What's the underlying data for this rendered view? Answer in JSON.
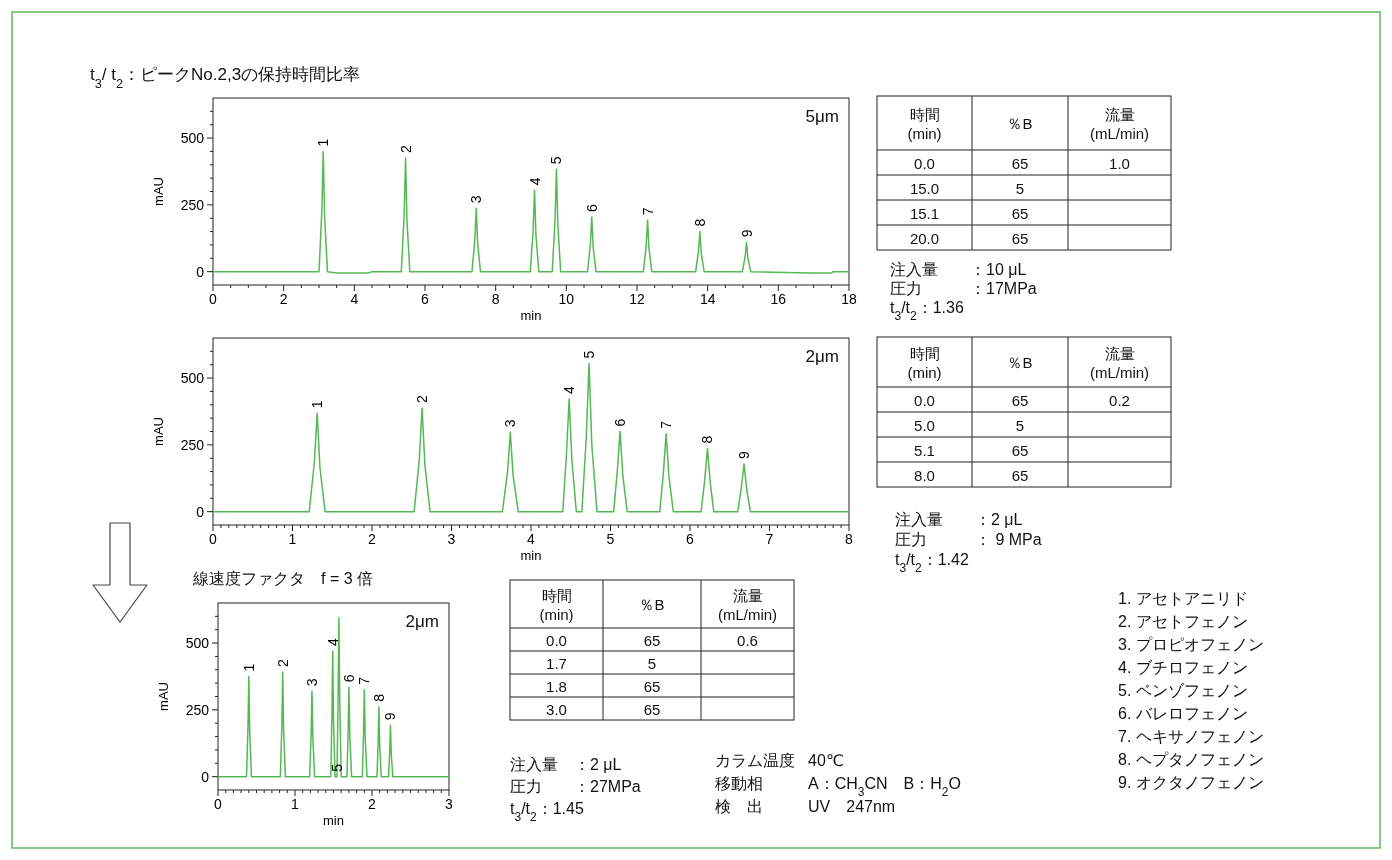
{
  "chart_data": [
    {
      "type": "line",
      "xlabel": "min",
      "ylabel": "mAU",
      "xlim": [
        0,
        18
      ],
      "ylim": [
        -50,
        650
      ],
      "xticks": [
        0,
        {
          "value": 0.5,
          "label": null
        },
        {
          "value": 1,
          "label": null
        },
        {
          "value": 1.5,
          "label": null
        },
        2,
        {
          "value": 2.5,
          "label": null
        },
        {
          "value": 3,
          "label": null
        },
        {
          "value": 3.5,
          "label": null
        },
        4,
        {
          "value": 4.5,
          "label": null
        },
        {
          "value": 5,
          "label": null
        },
        {
          "value": 5.5,
          "label": null
        },
        6,
        {
          "value": 6.5,
          "label": null
        },
        {
          "value": 7,
          "label": null
        },
        {
          "value": 7.5,
          "label": null
        },
        8,
        {
          "value": 8.5,
          "label": null
        },
        {
          "value": 9,
          "label": null
        },
        {
          "value": 9.5,
          "label": null
        },
        10,
        {
          "value": 10.5,
          "label": null
        },
        {
          "value": 11,
          "label": null
        },
        {
          "value": 11.5,
          "label": null
        },
        12,
        {
          "value": 12.5,
          "label": null
        },
        {
          "value": 13,
          "label": null
        },
        {
          "value": 13.5,
          "label": null
        },
        14,
        {
          "value": 14.5,
          "label": null
        },
        {
          "value": 15,
          "label": null
        },
        {
          "value": 15.5,
          "label": null
        },
        16,
        {
          "value": 16.5,
          "label": null
        },
        {
          "value": 17,
          "label": null
        },
        {
          "value": 17.5,
          "label": null
        },
        18
      ],
      "yticks": [
        0,
        {
          "value": 50,
          "label": null
        },
        {
          "value": 100,
          "label": null
        },
        {
          "value": 150,
          "label": null
        },
        {
          "value": 200,
          "label": null
        },
        250,
        {
          "value": 300,
          "label": null
        },
        {
          "value": 350,
          "label": null
        },
        {
          "value": 400,
          "label": null
        },
        {
          "value": 450,
          "label": null
        },
        500,
        {
          "value": 550,
          "label": null
        },
        {
          "value": 600,
          "label": null
        }
      ],
      "series": [
        {
          "color": "#55b855",
          "x": [
            0,
            3.0,
            3.08,
            3.12,
            3.16,
            3.24,
            3.5,
            4.4,
            4.5,
            5.33,
            5.41,
            5.45,
            5.49,
            5.57,
            7.33,
            7.41,
            7.45,
            7.49,
            7.57,
            8.98,
            9.06,
            9.1,
            9.14,
            9.22,
            9.6,
            9.68,
            9.72,
            9.76,
            9.84,
            10.6,
            10.68,
            10.72,
            10.76,
            10.84,
            12.18,
            12.26,
            12.3,
            12.34,
            12.42,
            13.66,
            13.74,
            13.78,
            13.82,
            13.9,
            14.98,
            15.06,
            15.1,
            15.14,
            15.22,
            16.9,
            17.5,
            17.55,
            18
          ],
          "values": [
            0,
            0,
            225,
            450,
            200,
            0,
            -5,
            -5,
            0,
            0,
            212,
            425,
            190,
            0,
            0,
            118,
            237,
            106,
            0,
            0,
            152,
            305,
            137,
            0,
            0,
            191,
            383,
            172,
            0,
            0,
            102,
            205,
            92,
            0,
            0,
            96,
            192,
            86,
            0,
            0,
            75,
            150,
            67,
            0,
            0,
            55,
            110,
            49,
            0,
            -5,
            -5,
            0,
            0
          ]
        }
      ],
      "annotations": [
        "5μm",
        "時間\n(min)",
        "％B",
        "流量\n(mL/min)",
        "0.0",
        "65",
        "1.0",
        "15.0",
        "5",
        "15.1",
        "65",
        "20.0",
        "65",
        "注入量　　：10 μL",
        "圧力　　　：17MPa",
        "t$_{3}$/t$_{2}$：1.36",
        {
          "text": "1",
          "x": 3.12,
          "y": 450
        },
        {
          "text": "2",
          "x": 5.45,
          "y": 425
        },
        {
          "text": "3",
          "x": 7.45,
          "y": 237
        },
        {
          "text": "4",
          "x": 9.1,
          "y": 305
        },
        {
          "text": "5",
          "x": 9.72,
          "y": 383
        },
        {
          "text": "6",
          "x": 10.72,
          "y": 205
        },
        {
          "text": "7",
          "x": 12.3,
          "y": 192
        },
        {
          "text": "8",
          "x": 13.78,
          "y": 150
        },
        {
          "text": "9",
          "x": 15.1,
          "y": 110
        }
      ]
    },
    {
      "type": "line",
      "xlabel": "min",
      "ylabel": "mAU",
      "xlim": [
        0,
        8
      ],
      "ylim": [
        -50,
        650
      ],
      "xticks": [
        0,
        {
          "value": 0.1,
          "label": null
        },
        {
          "value": 0.2,
          "label": null
        },
        {
          "value": 0.3,
          "label": null
        },
        {
          "value": 0.4,
          "label": null
        },
        {
          "value": 0.5,
          "label": null
        },
        {
          "value": 0.6,
          "label": null
        },
        {
          "value": 0.7,
          "label": null
        },
        {
          "value": 0.8,
          "label": null
        },
        {
          "value": 0.9,
          "label": null
        },
        1,
        {
          "value": 1.1,
          "label": null
        },
        {
          "value": 1.2,
          "label": null
        },
        {
          "value": 1.3,
          "label": null
        },
        {
          "value": 1.4,
          "label": null
        },
        {
          "value": 1.5,
          "label": null
        },
        {
          "value": 1.6,
          "label": null
        },
        {
          "value": 1.7,
          "label": null
        },
        {
          "value": 1.8,
          "label": null
        },
        {
          "value": 1.9,
          "label": null
        },
        2,
        {
          "value": 2.1,
          "label": null
        },
        {
          "value": 2.2,
          "label": null
        },
        {
          "value": 2.3,
          "label": null
        },
        {
          "value": 2.4,
          "label": null
        },
        {
          "value": 2.5,
          "label": null
        },
        {
          "value": 2.6,
          "label": null
        },
        {
          "value": 2.7,
          "label": null
        },
        {
          "value": 2.8,
          "label": null
        },
        {
          "value": 2.9,
          "label": null
        },
        3,
        {
          "value": 3.1,
          "label": null
        },
        {
          "value": 3.2,
          "label": null
        },
        {
          "value": 3.3,
          "label": null
        },
        {
          "value": 3.4,
          "label": null
        },
        {
          "value": 3.5,
          "label": null
        },
        {
          "value": 3.6,
          "label": null
        },
        {
          "value": 3.7,
          "label": null
        },
        {
          "value": 3.8,
          "label": null
        },
        {
          "value": 3.9,
          "label": null
        },
        4,
        {
          "value": 4.1,
          "label": null
        },
        {
          "value": 4.2,
          "label": null
        },
        {
          "value": 4.3,
          "label": null
        },
        {
          "value": 4.4,
          "label": null
        },
        {
          "value": 4.5,
          "label": null
        },
        {
          "value": 4.6,
          "label": null
        },
        {
          "value": 4.7,
          "label": null
        },
        {
          "value": 4.8,
          "label": null
        },
        {
          "value": 4.9,
          "label": null
        },
        5,
        {
          "value": 5.1,
          "label": null
        },
        {
          "value": 5.2,
          "label": null
        },
        {
          "value": 5.3,
          "label": null
        },
        {
          "value": 5.4,
          "label": null
        },
        {
          "value": 5.5,
          "label": null
        },
        {
          "value": 5.6,
          "label": null
        },
        {
          "value": 5.7,
          "label": null
        },
        {
          "value": 5.8,
          "label": null
        },
        {
          "value": 5.9,
          "label": null
        },
        6,
        {
          "value": 6.1,
          "label": null
        },
        {
          "value": 6.2,
          "label": null
        },
        {
          "value": 6.3,
          "label": null
        },
        {
          "value": 6.4,
          "label": null
        },
        {
          "value": 6.5,
          "label": null
        },
        {
          "value": 6.6,
          "label": null
        },
        {
          "value": 6.7,
          "label": null
        },
        {
          "value": 6.8,
          "label": null
        },
        {
          "value": 6.9,
          "label": null
        },
        7,
        {
          "value": 7.1,
          "label": null
        },
        {
          "value": 7.2,
          "label": null
        },
        {
          "value": 7.3,
          "label": null
        },
        {
          "value": 7.4,
          "label": null
        },
        {
          "value": 7.5,
          "label": null
        },
        {
          "value": 7.6,
          "label": null
        },
        {
          "value": 7.7,
          "label": null
        },
        {
          "value": 7.8,
          "label": null
        },
        {
          "value": 7.9,
          "label": null
        },
        8
      ],
      "yticks": [
        0,
        {
          "value": 50,
          "label": null
        },
        {
          "value": 100,
          "label": null
        },
        {
          "value": 150,
          "label": null
        },
        {
          "value": 200,
          "label": null
        },
        250,
        {
          "value": 300,
          "label": null
        },
        {
          "value": 350,
          "label": null
        },
        {
          "value": 400,
          "label": null
        },
        {
          "value": 450,
          "label": null
        },
        500,
        {
          "value": 550,
          "label": null
        },
        {
          "value": 600,
          "label": null
        }
      ],
      "series": [
        {
          "color": "#55b855",
          "x": [
            0,
            1.21,
            1.275,
            1.31,
            1.345,
            1.41,
            2.53,
            2.595,
            2.63,
            2.665,
            2.73,
            3.64,
            3.705,
            3.74,
            3.775,
            3.84,
            4.4,
            4.445,
            4.48,
            4.515,
            4.57,
            4.64,
            4.695,
            4.73,
            4.765,
            4.83,
            5.04,
            5.085,
            5.12,
            5.155,
            5.21,
            5.62,
            5.665,
            5.7,
            5.735,
            5.79,
            6.14,
            6.185,
            6.22,
            6.255,
            6.3,
            6.6,
            6.645,
            6.68,
            6.715,
            6.76,
            8
          ],
          "values": [
            0,
            0,
            184,
            368,
            166,
            0,
            0,
            194,
            388,
            175,
            0,
            0,
            148,
            297,
            134,
            0,
            0,
            211,
            422,
            190,
            0,
            0,
            278,
            555,
            250,
            0,
            0,
            150,
            300,
            135,
            0,
            0,
            146,
            292,
            131,
            0,
            0,
            118,
            236,
            106,
            0,
            0,
            89,
            178,
            80,
            0,
            0
          ]
        }
      ],
      "annotations": [
        "2μm",
        "時間\n(min)",
        "％B",
        "流量\n(mL/min)",
        "0.0",
        "65",
        "0.2",
        "5.0",
        "5",
        "5.1",
        "65",
        "8.0",
        "65",
        "注入量　　：2 μL",
        "圧力　　　： 9 MPa",
        "t$_{3}$/t$_{2}$：1.42",
        {
          "text": "1",
          "x": 1.31,
          "y": 368
        },
        {
          "text": "2",
          "x": 2.63,
          "y": 388
        },
        {
          "text": "3",
          "x": 3.74,
          "y": 297
        },
        {
          "text": "4",
          "x": 4.48,
          "y": 422
        },
        {
          "text": "5",
          "x": 4.73,
          "y": 555
        },
        {
          "text": "6",
          "x": 5.12,
          "y": 300
        },
        {
          "text": "7",
          "x": 5.7,
          "y": 292
        },
        {
          "text": "8",
          "x": 6.22,
          "y": 236
        },
        {
          "text": "9",
          "x": 6.68,
          "y": 178
        }
      ]
    },
    {
      "type": "line",
      "xlabel": "min",
      "ylabel": "mAU",
      "xlim": [
        0,
        3
      ],
      "ylim": [
        -50,
        650
      ],
      "xticks": [
        0,
        {
          "value": 0.1,
          "label": null
        },
        {
          "value": 0.2,
          "label": null
        },
        {
          "value": 0.3,
          "label": null
        },
        {
          "value": 0.4,
          "label": null
        },
        {
          "value": 0.5,
          "label": null
        },
        {
          "value": 0.6,
          "label": null
        },
        {
          "value": 0.7,
          "label": null
        },
        {
          "value": 0.8,
          "label": null
        },
        {
          "value": 0.9,
          "label": null
        },
        1,
        {
          "value": 1.1,
          "label": null
        },
        {
          "value": 1.2,
          "label": null
        },
        {
          "value": 1.3,
          "label": null
        },
        {
          "value": 1.4,
          "label": null
        },
        {
          "value": 1.5,
          "label": null
        },
        {
          "value": 1.6,
          "label": null
        },
        {
          "value": 1.7,
          "label": null
        },
        {
          "value": 1.8,
          "label": null
        },
        {
          "value": 1.9,
          "label": null
        },
        2,
        {
          "value": 2.1,
          "label": null
        },
        {
          "value": 2.2,
          "label": null
        },
        {
          "value": 2.3,
          "label": null
        },
        {
          "value": 2.4,
          "label": null
        },
        {
          "value": 2.5,
          "label": null
        },
        {
          "value": 2.6,
          "label": null
        },
        {
          "value": 2.7,
          "label": null
        },
        {
          "value": 2.8,
          "label": null
        },
        {
          "value": 2.9,
          "label": null
        },
        3
      ],
      "yticks": [
        0,
        {
          "value": 50,
          "label": null
        },
        {
          "value": 100,
          "label": null
        },
        {
          "value": 150,
          "label": null
        },
        {
          "value": 200,
          "label": null
        },
        250,
        {
          "value": 300,
          "label": null
        },
        {
          "value": 350,
          "label": null
        },
        {
          "value": 400,
          "label": null
        },
        {
          "value": 450,
          "label": null
        },
        500,
        {
          "value": 550,
          "label": null
        },
        {
          "value": 600,
          "label": null
        }
      ],
      "series": [
        {
          "color": "#55b855",
          "x": [
            0,
            0.37,
            0.39,
            0.4,
            0.412,
            0.435,
            0.81,
            0.83,
            0.84,
            0.852,
            0.875,
            1.19,
            1.21,
            1.22,
            1.232,
            1.255,
            1.465,
            1.48,
            1.49,
            1.5,
            1.52,
            1.545,
            1.56,
            1.57,
            1.582,
            1.6,
            1.675,
            1.69,
            1.7,
            1.712,
            1.735,
            1.875,
            1.89,
            1.9,
            1.912,
            1.935,
            2.065,
            2.08,
            2.09,
            2.1,
            2.12,
            2.215,
            2.23,
            2.24,
            2.25,
            2.27,
            3
          ],
          "values": [
            0,
            0,
            188,
            375,
            169,
            0,
            0,
            196,
            392,
            176,
            0,
            0,
            160,
            320,
            144,
            0,
            0,
            235,
            470,
            212,
            0,
            0,
            298,
            595,
            268,
            0,
            0,
            168,
            335,
            151,
            0,
            0,
            162,
            325,
            146,
            0,
            0,
            131,
            262,
            118,
            0,
            0,
            96,
            192,
            86,
            0,
            0
          ]
        }
      ],
      "annotations": [
        "2μm",
        "時間\n(min)",
        "％B",
        "流量\n(mL/min)",
        "0.0",
        "65",
        "0.6",
        "1.7",
        "5",
        "1.8",
        "65",
        "3.0",
        "65",
        "注入量　：2 μL",
        "圧力　　：27MPa",
        "t$_{3}$/t$_{2}$：1.45",
        {
          "text": "1",
          "x": 0.4,
          "y": 375
        },
        {
          "text": "2",
          "x": 0.84,
          "y": 392
        },
        {
          "text": "3",
          "x": 1.22,
          "y": 320
        },
        {
          "text": "4",
          "x": 1.49,
          "y": 470
        },
        {
          "text": "5",
          "x": 1.545,
          "y": 0
        },
        {
          "text": "6",
          "x": 1.7,
          "y": 335
        },
        {
          "text": "7",
          "x": 1.9,
          "y": 325
        },
        {
          "text": "8",
          "x": 2.09,
          "y": 262
        },
        {
          "text": "9",
          "x": 2.24,
          "y": 192
        }
      ]
    },
    {
      "type": "other",
      "title": "t$_{3}$/ t$_{2}$：ピークNo.2,3の保持時間比率",
      "annotations": [
        "線速度ファクタ　f = 3 倍",
        "1.  アセトアニリド",
        "2.  アセトフェノン",
        "3.  プロピオフェノン",
        "4.  ブチロフェノン",
        "5.  ベンゾフェノン",
        "6.  バレロフェノン",
        "7.  ヘキサノフェノン",
        "8.  ヘプタノフェノン",
        "9.  オクタノフェノン",
        "カラム温度",
        "40℃",
        "移動相",
        "A：CH$_{3}$CN　B：H$_{2}$O",
        "検　出",
        "UV　247nm"
      ]
    }
  ]
}
